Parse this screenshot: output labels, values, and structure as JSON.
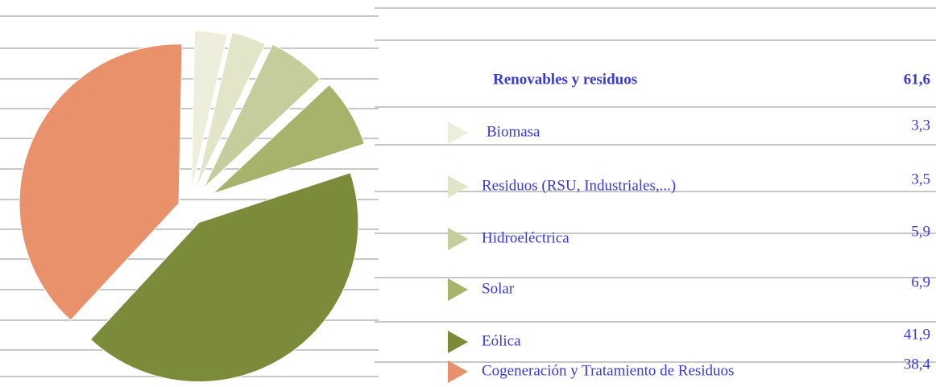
{
  "chart_data": {
    "type": "pie",
    "header": {
      "name": "Renovables y residuos",
      "value": 61.6,
      "label": "61,6"
    },
    "categories": [
      "Biomasa",
      "Residuos (RSU, Industriales,...)",
      "Hidroeléctrica",
      "Solar",
      "Eólica",
      "Cogeneración y Tratamiento de Residuos"
    ],
    "values": [
      3.3,
      3.5,
      5.9,
      6.9,
      41.9,
      38.4
    ],
    "value_labels": [
      "3,3",
      "3,5",
      "5,9",
      "6,9",
      "41,9",
      "38,4"
    ],
    "colors": [
      "#eeeedc",
      "#e2e5c8",
      "#c6cd9c",
      "#a7b26a",
      "#7b8b3a",
      "#e8916a"
    ]
  }
}
